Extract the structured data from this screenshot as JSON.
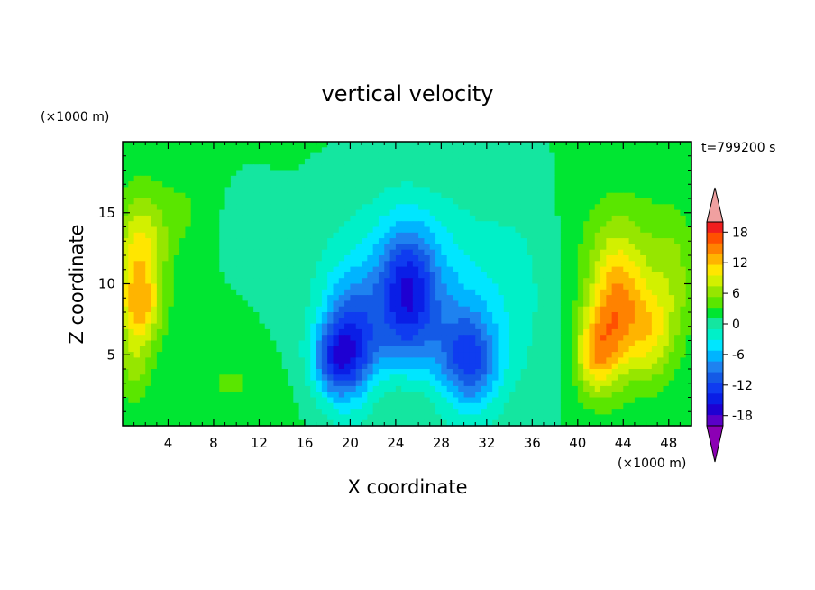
{
  "chart_data": {
    "type": "heatmap",
    "title": "vertical velocity",
    "xlabel": "X coordinate",
    "ylabel": "Z coordinate",
    "x_unit": "(×1000 m)",
    "y_unit": "(×1000 m)",
    "time_label": "t=799200 s",
    "xlim": [
      0,
      50
    ],
    "ylim": [
      0,
      20
    ],
    "x_ticks": [
      4,
      8,
      12,
      16,
      20,
      24,
      28,
      32,
      36,
      40,
      44,
      48
    ],
    "y_ticks": [
      5,
      10,
      15
    ],
    "colorbar": {
      "ticks": [
        18,
        12,
        6,
        0,
        -6,
        -12,
        -18
      ],
      "range": [
        -20,
        20
      ],
      "levels": [
        -20,
        -18,
        -16,
        -14,
        -12,
        -10,
        -8,
        -6,
        -4,
        -2,
        0,
        2,
        4,
        6,
        8,
        10,
        12,
        14,
        16,
        18,
        20
      ],
      "colors": [
        "#8c00b4",
        "#5a00c8",
        "#1e00d2",
        "#0a1ee6",
        "#0f3cf0",
        "#145ae6",
        "#1e82f0",
        "#00b4ff",
        "#00e6ff",
        "#00f0c8",
        "#14e6a0",
        "#00e632",
        "#5ae600",
        "#96e600",
        "#d2f000",
        "#ffe600",
        "#ffb400",
        "#ff8200",
        "#ff5000",
        "#f01e1e",
        "#f0a0a0"
      ],
      "over_color": "#f0a0a0",
      "under_color": "#8c00b4"
    },
    "features": [
      {
        "x": 1.5,
        "z": 11.5,
        "w": 2.2,
        "h": 4.5,
        "amp": 9
      },
      {
        "x": 1.5,
        "z": 8.0,
        "w": 1.8,
        "h": 2.5,
        "amp": 6
      },
      {
        "x": 1.0,
        "z": 4.0,
        "w": 1.5,
        "h": 2.5,
        "amp": 4
      },
      {
        "x": 5.0,
        "z": 15.0,
        "w": 3.0,
        "h": 3.0,
        "amp": 2
      },
      {
        "x": 11.0,
        "z": 14.0,
        "w": 2.5,
        "h": 3.0,
        "amp": -1.5
      },
      {
        "x": 9.5,
        "z": 3.0,
        "w": 3.0,
        "h": 2.5,
        "amp": 2
      },
      {
        "x": 20.0,
        "z": 5.5,
        "w": 2.5,
        "h": 4.5,
        "amp": -11
      },
      {
        "x": 18.5,
        "z": 4.5,
        "w": 2.0,
        "h": 2.5,
        "amp": -7
      },
      {
        "x": 25.0,
        "z": 9.5,
        "w": 2.5,
        "h": 4.5,
        "amp": -10
      },
      {
        "x": 30.5,
        "z": 4.5,
        "w": 2.5,
        "h": 3.5,
        "amp": -10
      },
      {
        "x": 26.5,
        "z": 6.5,
        "w": 7.0,
        "h": 7.0,
        "amp": -5
      },
      {
        "x": 25.0,
        "z": 11.0,
        "w": 8.0,
        "h": 6.0,
        "amp": -3
      },
      {
        "x": 24.0,
        "z": 2.0,
        "w": 6.0,
        "h": 2.5,
        "amp": 3
      },
      {
        "x": 35.0,
        "z": 10.0,
        "w": 3.0,
        "h": 8.0,
        "amp": -1.5
      },
      {
        "x": 43.5,
        "z": 8.0,
        "w": 2.5,
        "h": 4.5,
        "amp": 12
      },
      {
        "x": 41.5,
        "z": 5.0,
        "w": 1.8,
        "h": 3.0,
        "amp": 8
      },
      {
        "x": 46.5,
        "z": 6.5,
        "w": 1.8,
        "h": 3.5,
        "amp": 6
      },
      {
        "x": 48.5,
        "z": 10.0,
        "w": 2.0,
        "h": 5.0,
        "amp": 4
      },
      {
        "x": 44.0,
        "z": 13.0,
        "w": 4.0,
        "h": 4.0,
        "amp": 3
      }
    ]
  }
}
